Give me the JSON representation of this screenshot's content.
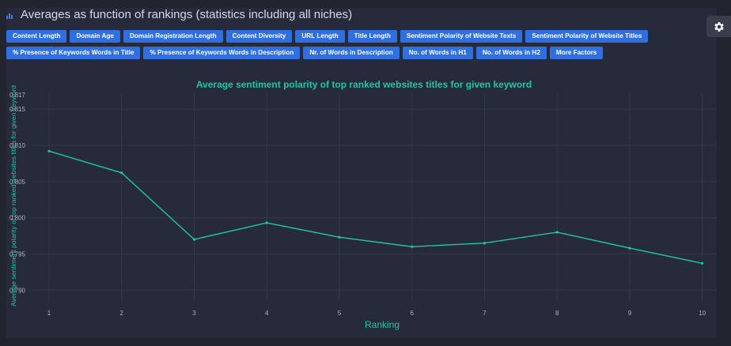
{
  "header": {
    "title": "Averages as function of rankings (statistics including all niches)"
  },
  "buttons_row1": [
    "Content Length",
    "Domain Age",
    "Domain Registration Length",
    "Content Diversity",
    "URL Length",
    "Title Length",
    "Sentiment Polarity of Website Texts",
    "Sentiment Polarity of Website Titles"
  ],
  "buttons_row2": [
    "% Presence of Keywords Words in Title",
    "% Presence of Keywords Words in Description",
    "Nr. of Words in Description",
    "No. of Words in H1",
    "No. of Words in H2",
    "More Factors"
  ],
  "colors": {
    "accent": "#1dc7a5",
    "button": "#2f6fe0",
    "panel": "#272a3a"
  },
  "icons": {
    "header": "bar-chart-icon",
    "settings": "gear-icon"
  },
  "chart_data": {
    "type": "line",
    "title": "Average sentiment polarity of top ranked websites titles for given keyword",
    "xlabel": "Ranking",
    "ylabel": "Average sentiment polarity of top ranked websites titles for given keyword",
    "x": [
      1,
      2,
      3,
      4,
      5,
      6,
      7,
      8,
      9,
      10
    ],
    "series": [
      {
        "values": [
          0.8092,
          0.8062,
          0.797,
          0.7993,
          0.7973,
          0.796,
          0.7965,
          0.798,
          0.7958,
          0.7937
        ]
      }
    ],
    "ylim": [
      0.7885,
      0.8172
    ],
    "yticks": [
      0.79,
      0.795,
      0.8,
      0.805,
      0.81,
      0.815,
      0.817
    ],
    "grid": true
  }
}
